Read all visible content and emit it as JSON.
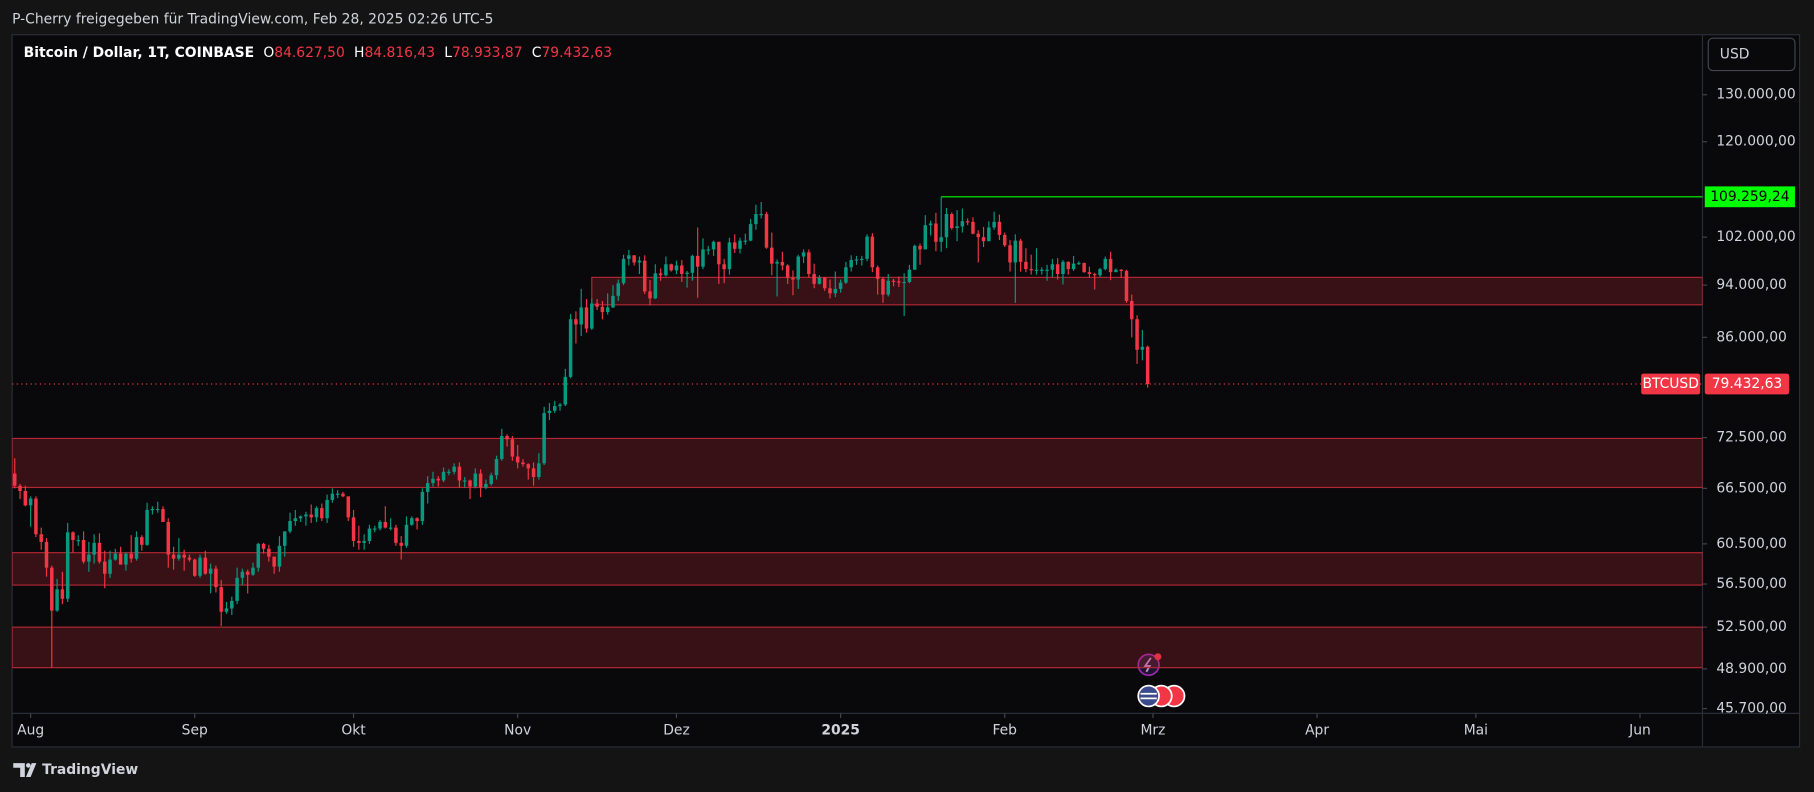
{
  "header": {
    "shared_by": "P-Cherry freigegeben für TradingView.com, Feb 28, 2025 02:26 UTC-5",
    "brand": "TradingView"
  },
  "chart_data": {
    "type": "candlestick",
    "legend": {
      "symbol": "Bitcoin / Dollar, 1T, COINBASE",
      "items": [
        {
          "key": "O",
          "label": "84.627,50"
        },
        {
          "key": "H",
          "label": "84.816,43"
        },
        {
          "key": "L",
          "label": "78.933,87"
        },
        {
          "key": "C",
          "label": "79.432,63"
        }
      ]
    },
    "currency": "USD",
    "up_color": "#089981",
    "down_color": "#f23645",
    "log_scale": true,
    "xlim": [
      -0.5,
      318.8
    ],
    "xticks": [
      {
        "value": 3,
        "label": "Aug"
      },
      {
        "value": 34,
        "label": "Sep"
      },
      {
        "value": 64,
        "label": "Okt"
      },
      {
        "value": 95,
        "label": "Nov"
      },
      {
        "value": 125,
        "label": "Dez"
      },
      {
        "value": 156,
        "label": "2025"
      },
      {
        "value": 187,
        "label": "Feb"
      },
      {
        "value": 215,
        "label": "Mrz"
      },
      {
        "value": 246,
        "label": "Apr"
      },
      {
        "value": 276,
        "label": "Mai"
      },
      {
        "value": 307,
        "label": "Jun"
      }
    ],
    "ylim": [
      45330,
      144000
    ],
    "yticks": [
      {
        "value": 130000,
        "label": "130.000,00"
      },
      {
        "value": 120000,
        "label": "120.000,00"
      },
      {
        "value": 102000,
        "label": "102.000,00"
      },
      {
        "value": 94000,
        "label": "94.000,00"
      },
      {
        "value": 86000,
        "label": "86.000,00"
      },
      {
        "value": 72500,
        "label": "72.500,00"
      },
      {
        "value": 66500,
        "label": "66.500,00"
      },
      {
        "value": 60500,
        "label": "60.500,00"
      },
      {
        "value": 56500,
        "label": "56.500,00"
      },
      {
        "value": 52500,
        "label": "52.500,00"
      },
      {
        "value": 48900,
        "label": "48.900,00"
      },
      {
        "value": 45700,
        "label": "45.700,00"
      }
    ],
    "zones": [
      {
        "low": 90900,
        "high": 95250,
        "start": 109
      },
      {
        "low": 66600,
        "high": 72400
      },
      {
        "low": 56400,
        "high": 59600
      },
      {
        "low": 49000,
        "high": 52500
      }
    ],
    "zone_color": "#b22833",
    "level_line": {
      "value": 109259.24,
      "label": "109.259,24",
      "start": 175,
      "color": "#00ff00"
    },
    "price_line": {
      "name": "BTCUSD",
      "value": 79432.63,
      "label": "79.432,63",
      "color": "#f23645"
    },
    "candles": [
      [
        68200,
        70000,
        66500,
        66800
      ],
      [
        66800,
        67000,
        65300,
        66200
      ],
      [
        66200,
        66800,
        64500,
        64600
      ],
      [
        64600,
        65600,
        62300,
        65350
      ],
      [
        65350,
        65600,
        61200,
        61500
      ],
      [
        61500,
        62200,
        59900,
        60700
      ],
      [
        60700,
        61100,
        57200,
        58100
      ],
      [
        58100,
        58300,
        49000,
        54000
      ],
      [
        54000,
        57000,
        53900,
        56000
      ],
      [
        56000,
        57700,
        54600,
        55100
      ],
      [
        55100,
        62700,
        54800,
        61700
      ],
      [
        61700,
        61800,
        59600,
        60900
      ],
      [
        60900,
        61400,
        60300,
        60900
      ],
      [
        60900,
        61800,
        58500,
        58700
      ],
      [
        58700,
        60700,
        57700,
        59400
      ],
      [
        59400,
        61500,
        58500,
        60600
      ],
      [
        60600,
        61600,
        58500,
        58700
      ],
      [
        58700,
        59800,
        56100,
        57500
      ],
      [
        57500,
        59800,
        57100,
        58900
      ],
      [
        58900,
        60000,
        58800,
        59500
      ],
      [
        59500,
        60200,
        58400,
        58400
      ],
      [
        58400,
        59600,
        57800,
        59500
      ],
      [
        59500,
        61400,
        58600,
        59000
      ],
      [
        59000,
        61800,
        58800,
        61200
      ],
      [
        61200,
        61400,
        59800,
        60400
      ],
      [
        60400,
        64900,
        60300,
        64100
      ],
      [
        64100,
        64500,
        63600,
        64200
      ],
      [
        64200,
        65000,
        63800,
        64200
      ],
      [
        64200,
        64500,
        62800,
        62800
      ],
      [
        62800,
        63200,
        58100,
        59400
      ],
      [
        59400,
        60200,
        57900,
        59000
      ],
      [
        59000,
        61100,
        58800,
        59400
      ],
      [
        59400,
        59900,
        57800,
        59100
      ],
      [
        59100,
        59400,
        58700,
        58900
      ],
      [
        58900,
        59000,
        57200,
        57300
      ],
      [
        57300,
        59400,
        57100,
        59100
      ],
      [
        59100,
        59800,
        57400,
        57500
      ],
      [
        57500,
        58500,
        55600,
        58000
      ],
      [
        58000,
        58300,
        55700,
        56200
      ],
      [
        56200,
        56900,
        52600,
        53900
      ],
      [
        53900,
        54800,
        53700,
        54200
      ],
      [
        54200,
        55300,
        53600,
        54900
      ],
      [
        54900,
        58100,
        54600,
        57100
      ],
      [
        57100,
        58000,
        56400,
        57700
      ],
      [
        57700,
        57900,
        55600,
        57400
      ],
      [
        57400,
        58600,
        57300,
        58100
      ],
      [
        58100,
        60600,
        57700,
        60500
      ],
      [
        60500,
        60600,
        59500,
        60000
      ],
      [
        60000,
        60400,
        58700,
        59200
      ],
      [
        59200,
        59200,
        57500,
        58200
      ],
      [
        58200,
        61300,
        57700,
        60300
      ],
      [
        60300,
        61800,
        59200,
        61800
      ],
      [
        61800,
        63800,
        61600,
        62900
      ],
      [
        62900,
        64100,
        62400,
        63200
      ],
      [
        63200,
        63500,
        62800,
        63400
      ],
      [
        63400,
        63900,
        62400,
        63600
      ],
      [
        63600,
        64700,
        62700,
        63300
      ],
      [
        63300,
        64500,
        62800,
        64300
      ],
      [
        64300,
        64800,
        62900,
        63200
      ],
      [
        63200,
        65800,
        62700,
        65200
      ],
      [
        65200,
        66500,
        64900,
        65900
      ],
      [
        65900,
        66300,
        65400,
        65900
      ],
      [
        65900,
        66100,
        65500,
        65600
      ],
      [
        65600,
        65600,
        62900,
        63300
      ],
      [
        63300,
        64100,
        60200,
        60800
      ],
      [
        60800,
        62400,
        59900,
        60600
      ],
      [
        60600,
        61500,
        59900,
        60800
      ],
      [
        60800,
        62500,
        60500,
        62100
      ],
      [
        62100,
        62400,
        61700,
        62100
      ],
      [
        62100,
        63000,
        61900,
        62800
      ],
      [
        62800,
        64500,
        62100,
        62200
      ],
      [
        62200,
        63200,
        61900,
        62200
      ],
      [
        62200,
        62500,
        60300,
        60600
      ],
      [
        60600,
        61300,
        58900,
        60300
      ],
      [
        60300,
        63400,
        60100,
        62500
      ],
      [
        62500,
        63400,
        62400,
        63200
      ],
      [
        63200,
        63300,
        62000,
        62900
      ],
      [
        62900,
        66500,
        62500,
        66100
      ],
      [
        66100,
        67900,
        64800,
        67100
      ],
      [
        67100,
        68400,
        66700,
        67600
      ],
      [
        67600,
        67900,
        66700,
        67400
      ],
      [
        67400,
        68900,
        67200,
        68400
      ],
      [
        68400,
        68700,
        68000,
        68400
      ],
      [
        68400,
        69400,
        68100,
        69000
      ],
      [
        69000,
        69500,
        66600,
        67400
      ],
      [
        67400,
        67800,
        66600,
        67400
      ],
      [
        67400,
        67500,
        65300,
        66700
      ],
      [
        66700,
        68800,
        66500,
        68200
      ],
      [
        68200,
        68700,
        65500,
        66600
      ],
      [
        66600,
        67500,
        66400,
        67000
      ],
      [
        67000,
        68300,
        66800,
        68000
      ],
      [
        68000,
        70300,
        67500,
        69900
      ],
      [
        69900,
        73600,
        69700,
        72700
      ],
      [
        72700,
        72900,
        71400,
        72300
      ],
      [
        72300,
        72700,
        69700,
        70200
      ],
      [
        70200,
        71600,
        68800,
        69500
      ],
      [
        69500,
        69900,
        69000,
        69300
      ],
      [
        69300,
        69400,
        67500,
        68800
      ],
      [
        68800,
        69500,
        66800,
        67800
      ],
      [
        67800,
        70600,
        67500,
        69400
      ],
      [
        69400,
        76400,
        69200,
        75600
      ],
      [
        75600,
        76900,
        74700,
        75900
      ],
      [
        75900,
        77200,
        75600,
        76500
      ],
      [
        76500,
        76900,
        75900,
        76700
      ],
      [
        76700,
        81500,
        76500,
        80400
      ],
      [
        80400,
        89500,
        80200,
        88700
      ],
      [
        88700,
        89900,
        85100,
        87900
      ],
      [
        87900,
        93400,
        86200,
        90500
      ],
      [
        90500,
        91800,
        86700,
        87300
      ],
      [
        87300,
        91900,
        87100,
        91100
      ],
      [
        91100,
        91800,
        90100,
        90600
      ],
      [
        90600,
        91500,
        88700,
        89800
      ],
      [
        89800,
        92700,
        89400,
        90500
      ],
      [
        90500,
        94000,
        90400,
        92300
      ],
      [
        92300,
        94900,
        91500,
        94300
      ],
      [
        94300,
        99000,
        94000,
        98300
      ],
      [
        98300,
        99800,
        97200,
        98900
      ],
      [
        98900,
        98900,
        97200,
        97700
      ],
      [
        97700,
        98700,
        95800,
        98000
      ],
      [
        98000,
        98900,
        92600,
        93000
      ],
      [
        93000,
        94800,
        90800,
        91900
      ],
      [
        91900,
        97400,
        91800,
        95900
      ],
      [
        95900,
        96700,
        94700,
        95600
      ],
      [
        95600,
        98700,
        95400,
        97400
      ],
      [
        97400,
        97500,
        96200,
        96400
      ],
      [
        96400,
        98000,
        95800,
        97200
      ],
      [
        97200,
        98100,
        94500,
        95800
      ],
      [
        95800,
        96300,
        93600,
        96000
      ],
      [
        96000,
        99000,
        94700,
        98800
      ],
      [
        98800,
        103700,
        92000,
        97000
      ],
      [
        97000,
        101800,
        96600,
        99900
      ],
      [
        99900,
        100500,
        99000,
        99900
      ],
      [
        99900,
        101400,
        98800,
        101200
      ],
      [
        101200,
        101200,
        94200,
        97400
      ],
      [
        97400,
        98300,
        94300,
        96600
      ],
      [
        96600,
        101900,
        95700,
        101100
      ],
      [
        101100,
        102500,
        99300,
        100000
      ],
      [
        100000,
        101900,
        99200,
        101400
      ],
      [
        101400,
        102600,
        100700,
        101400
      ],
      [
        101400,
        105200,
        101300,
        104300
      ],
      [
        104300,
        107800,
        103300,
        106100
      ],
      [
        106100,
        108300,
        105300,
        106100
      ],
      [
        106100,
        106500,
        100000,
        100200
      ],
      [
        100200,
        102800,
        95600,
        97500
      ],
      [
        97500,
        98200,
        92200,
        97800
      ],
      [
        97800,
        99500,
        96400,
        97200
      ],
      [
        97200,
        97400,
        94200,
        95200
      ],
      [
        95200,
        96400,
        92400,
        94900
      ],
      [
        94900,
        99000,
        93400,
        98700
      ],
      [
        98700,
        99900,
        97600,
        99400
      ],
      [
        99400,
        99900,
        95200,
        95800
      ],
      [
        95800,
        97500,
        93500,
        94200
      ],
      [
        94200,
        95600,
        94100,
        95200
      ],
      [
        95200,
        95300,
        93100,
        93500
      ],
      [
        93500,
        94900,
        91900,
        92700
      ],
      [
        92700,
        96200,
        92100,
        93400
      ],
      [
        93400,
        94900,
        92800,
        94400
      ],
      [
        94400,
        97800,
        94200,
        96900
      ],
      [
        96900,
        98900,
        96200,
        98100
      ],
      [
        98100,
        98800,
        97300,
        98200
      ],
      [
        98200,
        98800,
        97200,
        98300
      ],
      [
        98300,
        102500,
        97900,
        102100
      ],
      [
        102100,
        102700,
        96100,
        96900
      ],
      [
        96900,
        97200,
        92500,
        95000
      ],
      [
        95000,
        95300,
        91200,
        92500
      ],
      [
        92500,
        95800,
        92200,
        94700
      ],
      [
        94700,
        95000,
        93800,
        94600
      ],
      [
        94600,
        95400,
        93700,
        94500
      ],
      [
        94500,
        95900,
        89200,
        94500
      ],
      [
        94500,
        97300,
        94300,
        96500
      ],
      [
        96500,
        100700,
        96500,
        100500
      ],
      [
        100500,
        100900,
        97300,
        99900
      ],
      [
        99900,
        105900,
        99900,
        104100
      ],
      [
        104100,
        104900,
        102300,
        104400
      ],
      [
        104400,
        106300,
        99600,
        101200
      ],
      [
        101200,
        109259.24,
        99500,
        102000
      ],
      [
        102000,
        107200,
        100100,
        106100
      ],
      [
        106100,
        106400,
        103300,
        103600
      ],
      [
        103600,
        106800,
        101300,
        103900
      ],
      [
        103900,
        107100,
        102800,
        104800
      ],
      [
        104800,
        105300,
        104100,
        104700
      ],
      [
        104700,
        105500,
        102500,
        102600
      ],
      [
        102600,
        103200,
        97700,
        102000
      ],
      [
        102000,
        103800,
        100300,
        101300
      ],
      [
        101300,
        104800,
        101300,
        103700
      ],
      [
        103700,
        106500,
        103300,
        104700
      ],
      [
        104700,
        106000,
        101500,
        102400
      ],
      [
        102400,
        102800,
        100300,
        100600
      ],
      [
        100600,
        101500,
        96200,
        97700
      ],
      [
        97700,
        102500,
        91200,
        101400
      ],
      [
        101400,
        101700,
        96200,
        97800
      ],
      [
        97800,
        100100,
        96100,
        96600
      ],
      [
        96600,
        99000,
        95700,
        96500
      ],
      [
        96500,
        100100,
        95700,
        96500
      ],
      [
        96500,
        96900,
        95700,
        96500
      ],
      [
        96500,
        97300,
        94700,
        96500
      ],
      [
        96500,
        98300,
        95300,
        97400
      ],
      [
        97400,
        98400,
        94900,
        95800
      ],
      [
        95800,
        98100,
        94100,
        97800
      ],
      [
        97800,
        97900,
        95700,
        96600
      ],
      [
        96600,
        98800,
        96300,
        97500
      ],
      [
        97500,
        97900,
        97300,
        97600
      ],
      [
        97600,
        97700,
        96000,
        96100
      ],
      [
        96100,
        97000,
        95200,
        95800
      ],
      [
        95800,
        96000,
        93300,
        95600
      ],
      [
        95600,
        96800,
        95300,
        96600
      ],
      [
        96600,
        98700,
        96400,
        98300
      ],
      [
        98300,
        99500,
        94800,
        96100
      ],
      [
        96100,
        96700,
        96100,
        96500
      ],
      [
        96500,
        96600,
        95200,
        96300
      ],
      [
        96300,
        96500,
        91200,
        91500
      ],
      [
        91500,
        92500,
        86000,
        88700
      ],
      [
        88700,
        89300,
        82200,
        84200
      ],
      [
        84200,
        87100,
        82700,
        84627.5
      ],
      [
        84627.5,
        84816.43,
        78933.87,
        79432.63
      ]
    ]
  }
}
